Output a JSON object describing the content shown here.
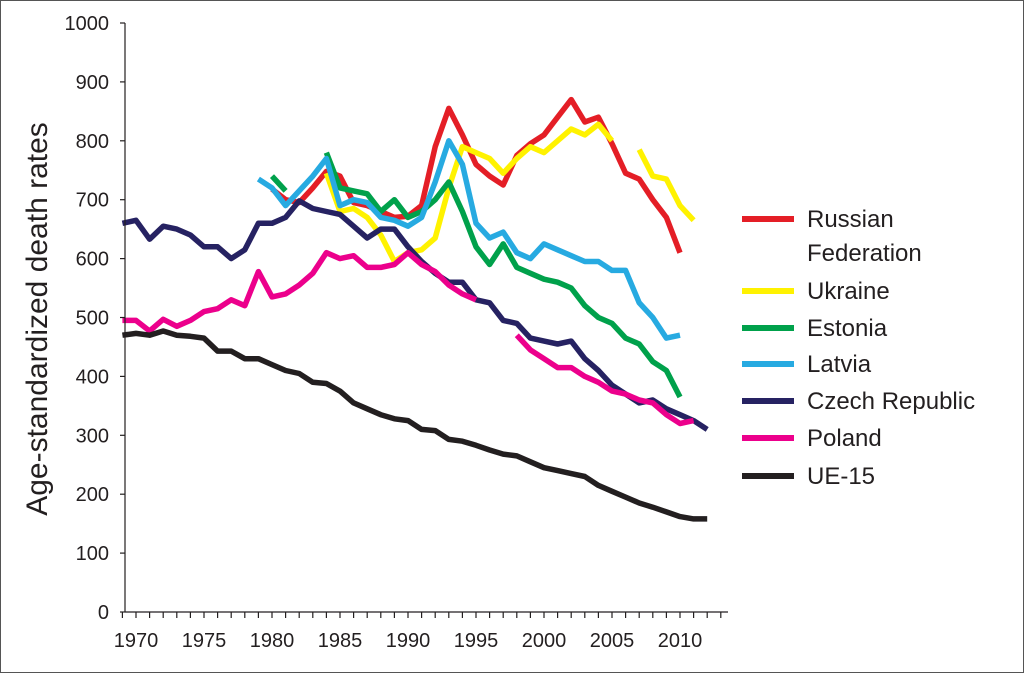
{
  "chart_data": {
    "type": "line",
    "title": "",
    "xlabel": "",
    "ylabel": "Age-standardized death rates",
    "xlim": [
      1969,
      2013
    ],
    "ylim": [
      0,
      1000
    ],
    "grid": false,
    "legend_position": "right",
    "x_ticks": [
      "1970",
      "1975",
      "1980",
      "1985",
      "1990",
      "1995",
      "2000",
      "2005",
      "2010"
    ],
    "y_ticks": [
      "0",
      "100",
      "200",
      "300",
      "400",
      "500",
      "600",
      "700",
      "800",
      "900",
      "1000"
    ],
    "series": [
      {
        "name": "Russian Federation",
        "color": "#e41e26",
        "segments": [
          [
            [
              1980,
              718
            ],
            [
              1981,
              700
            ],
            [
              1982,
              695
            ],
            [
              1983,
              720
            ],
            [
              1984,
              748
            ],
            [
              1985,
              740
            ],
            [
              1986,
              695
            ],
            [
              1987,
              690
            ],
            [
              1988,
              680
            ],
            [
              1989,
              670
            ],
            [
              1990,
              672
            ],
            [
              1991,
              690
            ],
            [
              1992,
              790
            ],
            [
              1993,
              855
            ],
            [
              1994,
              810
            ],
            [
              1995,
              760
            ],
            [
              1996,
              740
            ],
            [
              1997,
              725
            ],
            [
              1998,
              775
            ],
            [
              1999,
              795
            ],
            [
              2000,
              810
            ],
            [
              2001,
              840
            ],
            [
              2002,
              870
            ],
            [
              2003,
              832
            ],
            [
              2004,
              840
            ],
            [
              2005,
              795
            ],
            [
              2006,
              745
            ],
            [
              2007,
              735
            ],
            [
              2008,
              700
            ],
            [
              2009,
              670
            ],
            [
              2010,
              610
            ]
          ]
        ]
      },
      {
        "name": "Ukraine",
        "color": "#fff200",
        "segments": [
          [
            [
              1984,
              745
            ],
            [
              1985,
              680
            ],
            [
              1986,
              685
            ],
            [
              1987,
              670
            ],
            [
              1988,
              640
            ],
            [
              1989,
              595
            ],
            [
              1990,
              610
            ],
            [
              1991,
              615
            ],
            [
              1992,
              635
            ],
            [
              1993,
              720
            ],
            [
              1994,
              790
            ],
            [
              1995,
              780
            ],
            [
              1996,
              770
            ],
            [
              1997,
              745
            ],
            [
              1998,
              770
            ],
            [
              1999,
              790
            ],
            [
              2000,
              780
            ],
            [
              2001,
              800
            ],
            [
              2002,
              820
            ],
            [
              2003,
              810
            ],
            [
              2004,
              828
            ],
            [
              2005,
              800
            ]
          ],
          [
            [
              2007,
              785
            ],
            [
              2008,
              740
            ],
            [
              2009,
              735
            ],
            [
              2010,
              690
            ],
            [
              2011,
              665
            ]
          ]
        ]
      },
      {
        "name": "Estonia",
        "color": "#00a14b",
        "segments": [
          [
            [
              1980,
              740
            ],
            [
              1981,
              715
            ]
          ],
          [
            [
              1984,
              780
            ],
            [
              1985,
              720
            ],
            [
              1986,
              715
            ],
            [
              1987,
              710
            ],
            [
              1988,
              680
            ],
            [
              1989,
              700
            ],
            [
              1990,
              670
            ],
            [
              1991,
              680
            ],
            [
              1992,
              700
            ],
            [
              1993,
              730
            ],
            [
              1994,
              680
            ],
            [
              1995,
              620
            ],
            [
              1996,
              590
            ],
            [
              1997,
              625
            ],
            [
              1998,
              585
            ],
            [
              1999,
              575
            ],
            [
              2000,
              565
            ],
            [
              2001,
              560
            ],
            [
              2002,
              550
            ],
            [
              2003,
              520
            ],
            [
              2004,
              500
            ],
            [
              2005,
              490
            ],
            [
              2006,
              465
            ],
            [
              2007,
              455
            ],
            [
              2008,
              425
            ],
            [
              2009,
              410
            ],
            [
              2010,
              365
            ]
          ]
        ]
      },
      {
        "name": "Latvia",
        "color": "#27aae1",
        "segments": [
          [
            [
              1979,
              735
            ],
            [
              1980,
              720
            ],
            [
              1981,
              690
            ],
            [
              1982,
              715
            ],
            [
              1983,
              740
            ],
            [
              1984,
              770
            ],
            [
              1985,
              690
            ],
            [
              1986,
              700
            ],
            [
              1987,
              695
            ],
            [
              1988,
              670
            ],
            [
              1989,
              665
            ],
            [
              1990,
              655
            ],
            [
              1991,
              670
            ],
            [
              1992,
              730
            ],
            [
              1993,
              800
            ],
            [
              1994,
              760
            ],
            [
              1995,
              660
            ],
            [
              1996,
              635
            ],
            [
              1997,
              645
            ],
            [
              1998,
              610
            ],
            [
              1999,
              600
            ],
            [
              2000,
              625
            ],
            [
              2001,
              615
            ],
            [
              2002,
              605
            ],
            [
              2003,
              595
            ],
            [
              2004,
              595
            ],
            [
              2005,
              580
            ],
            [
              2006,
              580
            ],
            [
              2007,
              525
            ],
            [
              2008,
              500
            ],
            [
              2009,
              465
            ],
            [
              2010,
              470
            ]
          ]
        ]
      },
      {
        "name": "Czech Republic",
        "color": "#262262",
        "segments": [
          [
            [
              1969,
              660
            ],
            [
              1970,
              665
            ],
            [
              1971,
              633
            ],
            [
              1972,
              655
            ],
            [
              1973,
              650
            ],
            [
              1974,
              640
            ],
            [
              1975,
              620
            ],
            [
              1976,
              620
            ],
            [
              1977,
              600
            ],
            [
              1978,
              615
            ],
            [
              1979,
              660
            ],
            [
              1980,
              660
            ],
            [
              1981,
              670
            ],
            [
              1982,
              698
            ],
            [
              1983,
              685
            ],
            [
              1984,
              680
            ],
            [
              1985,
              675
            ],
            [
              1986,
              655
            ],
            [
              1987,
              635
            ],
            [
              1988,
              650
            ],
            [
              1989,
              650
            ],
            [
              1990,
              620
            ],
            [
              1991,
              595
            ],
            [
              1992,
              575
            ],
            [
              1993,
              560
            ],
            [
              1994,
              560
            ],
            [
              1995,
              530
            ],
            [
              1996,
              525
            ],
            [
              1997,
              495
            ],
            [
              1998,
              490
            ],
            [
              1999,
              465
            ],
            [
              2000,
              460
            ],
            [
              2001,
              455
            ],
            [
              2002,
              460
            ],
            [
              2003,
              430
            ],
            [
              2004,
              410
            ],
            [
              2005,
              385
            ],
            [
              2006,
              370
            ],
            [
              2007,
              355
            ],
            [
              2008,
              360
            ],
            [
              2009,
              345
            ],
            [
              2010,
              335
            ],
            [
              2011,
              325
            ],
            [
              2012,
              310
            ]
          ]
        ]
      },
      {
        "name": "Poland",
        "color": "#ec008c",
        "segments": [
          [
            [
              1969,
              495
            ],
            [
              1970,
              495
            ],
            [
              1971,
              477
            ],
            [
              1972,
              497
            ],
            [
              1973,
              485
            ],
            [
              1974,
              495
            ],
            [
              1975,
              510
            ],
            [
              1976,
              515
            ],
            [
              1977,
              530
            ],
            [
              1978,
              520
            ],
            [
              1979,
              578
            ],
            [
              1980,
              535
            ],
            [
              1981,
              540
            ],
            [
              1982,
              555
            ],
            [
              1983,
              575
            ],
            [
              1984,
              610
            ],
            [
              1985,
              600
            ],
            [
              1986,
              605
            ],
            [
              1987,
              585
            ],
            [
              1988,
              585
            ],
            [
              1989,
              590
            ],
            [
              1990,
              610
            ],
            [
              1991,
              590
            ],
            [
              1992,
              578
            ],
            [
              1993,
              555
            ],
            [
              1994,
              540
            ],
            [
              1995,
              530
            ]
          ],
          [
            [
              1998,
              470
            ],
            [
              1999,
              445
            ],
            [
              2000,
              430
            ],
            [
              2001,
              415
            ],
            [
              2002,
              415
            ],
            [
              2003,
              400
            ],
            [
              2004,
              390
            ],
            [
              2005,
              375
            ],
            [
              2006,
              370
            ],
            [
              2007,
              360
            ],
            [
              2008,
              355
            ],
            [
              2009,
              335
            ],
            [
              2010,
              320
            ],
            [
              2011,
              325
            ]
          ]
        ]
      },
      {
        "name": "UE-15",
        "color": "#231f20",
        "segments": [
          [
            [
              1969,
              470
            ],
            [
              1970,
              473
            ],
            [
              1971,
              470
            ],
            [
              1972,
              477
            ],
            [
              1973,
              470
            ],
            [
              1974,
              468
            ],
            [
              1975,
              465
            ],
            [
              1976,
              443
            ],
            [
              1977,
              443
            ],
            [
              1978,
              430
            ],
            [
              1979,
              430
            ],
            [
              1980,
              420
            ],
            [
              1981,
              410
            ],
            [
              1982,
              405
            ],
            [
              1983,
              390
            ],
            [
              1984,
              388
            ],
            [
              1985,
              375
            ],
            [
              1986,
              355
            ],
            [
              1987,
              345
            ],
            [
              1988,
              335
            ],
            [
              1989,
              328
            ],
            [
              1990,
              325
            ],
            [
              1991,
              310
            ],
            [
              1992,
              308
            ],
            [
              1993,
              293
            ],
            [
              1994,
              290
            ],
            [
              1995,
              283
            ],
            [
              1996,
              275
            ],
            [
              1997,
              268
            ],
            [
              1998,
              265
            ],
            [
              1999,
              255
            ],
            [
              2000,
              245
            ],
            [
              2001,
              240
            ],
            [
              2002,
              235
            ],
            [
              2003,
              230
            ],
            [
              2004,
              215
            ],
            [
              2005,
              205
            ],
            [
              2006,
              195
            ],
            [
              2007,
              185
            ],
            [
              2008,
              178
            ],
            [
              2009,
              170
            ],
            [
              2010,
              162
            ],
            [
              2011,
              158
            ],
            [
              2012,
              158
            ]
          ]
        ]
      }
    ]
  }
}
